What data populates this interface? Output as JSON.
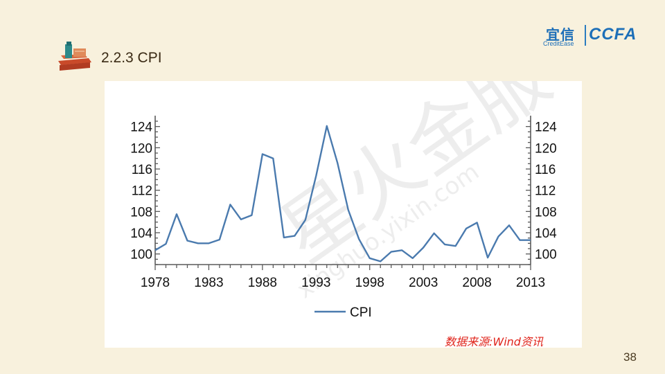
{
  "slide": {
    "title": "2.2.3 CPI",
    "page_number": "38",
    "source": "数据来源:Wind资讯"
  },
  "logo": {
    "brand_cn": "宜信",
    "brand_en": "CreditEase",
    "partner": "CCFA"
  },
  "watermark": {
    "text_cn": "星火金服",
    "text_en": "xinghuo.yixin.com"
  },
  "colors": {
    "background": "#f8f1dd",
    "series_line": "#4a7aae",
    "axis": "#5a5a5a",
    "source_text": "#e0241b"
  },
  "chart_data": {
    "type": "line",
    "title": "",
    "xlabel": "",
    "ylabel": "",
    "x_ticks": [
      "1978",
      "1983",
      "1988",
      "1993",
      "1998",
      "2003",
      "2008",
      "2013"
    ],
    "y_ticks": [
      100,
      104,
      108,
      112,
      116,
      120,
      124
    ],
    "xlim": [
      1978,
      2013
    ],
    "ylim": [
      98,
      125
    ],
    "dual_y_axis": true,
    "grid": false,
    "legend_position": "bottom",
    "series": [
      {
        "name": "CPI",
        "color": "#4a7aae",
        "x": [
          1978,
          1979,
          1980,
          1981,
          1982,
          1983,
          1984,
          1985,
          1986,
          1987,
          1988,
          1989,
          1990,
          1991,
          1992,
          1993,
          1994,
          1995,
          1996,
          1997,
          1998,
          1999,
          2000,
          2001,
          2002,
          2003,
          2004,
          2005,
          2006,
          2007,
          2008,
          2009,
          2010,
          2011,
          2012,
          2013
        ],
        "values": [
          100.7,
          101.9,
          107.5,
          102.5,
          102.0,
          102.0,
          102.7,
          109.3,
          106.5,
          107.3,
          118.8,
          118.0,
          103.1,
          103.4,
          106.4,
          114.7,
          124.1,
          117.1,
          108.3,
          102.8,
          99.2,
          98.6,
          100.4,
          100.7,
          99.2,
          101.2,
          103.9,
          101.8,
          101.5,
          104.8,
          105.9,
          99.3,
          103.3,
          105.4,
          102.6,
          102.6
        ]
      }
    ]
  }
}
